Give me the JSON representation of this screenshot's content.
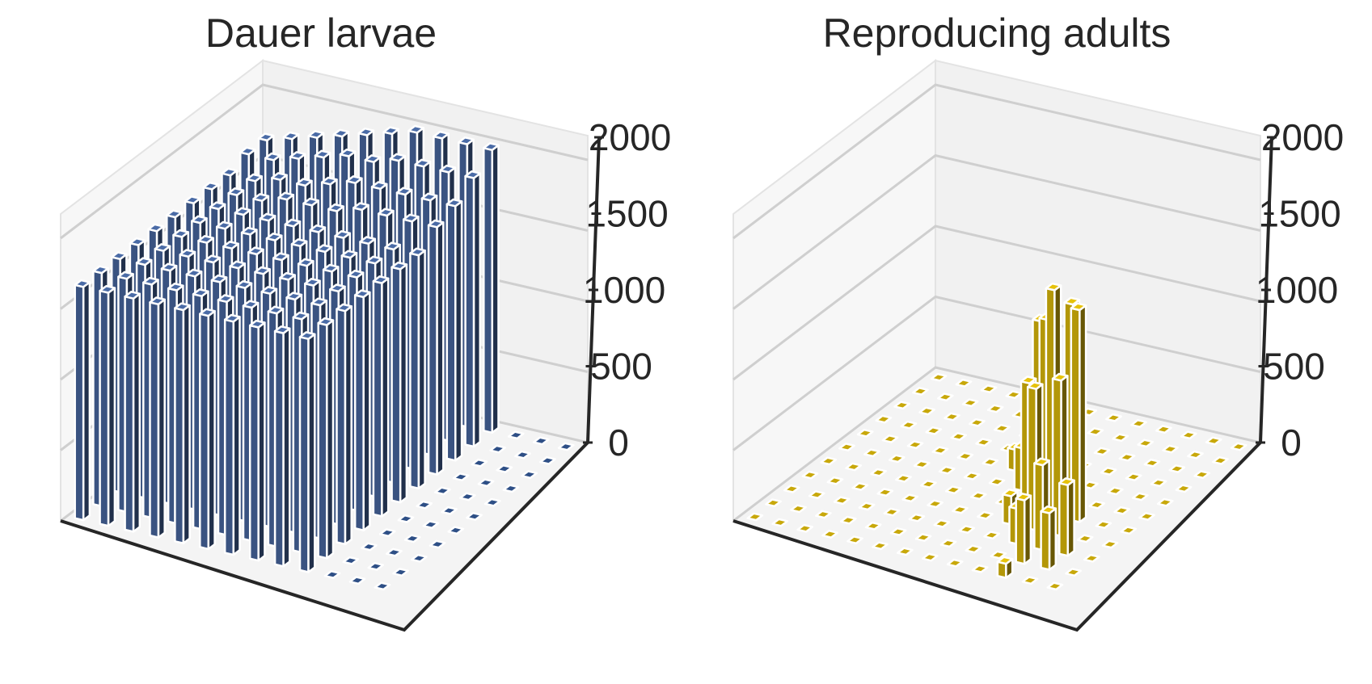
{
  "chart_data": [
    {
      "type": "bar3d",
      "title": "Dauer larvae",
      "zlim": [
        0,
        2000
      ],
      "zticks": [
        "0",
        "500",
        "1000",
        "1500",
        "2000"
      ],
      "grid": true,
      "bar_color": "#4a6ba6",
      "floor_color": "#2e4f86",
      "rows": [
        [
          1700,
          1750,
          1800,
          1850,
          1900,
          1950,
          2000,
          2000,
          2000,
          2000,
          0,
          0,
          0
        ],
        [
          1700,
          1700,
          1750,
          1800,
          1850,
          1850,
          1900,
          1900,
          1900,
          1900,
          0,
          0,
          0
        ],
        [
          1650,
          1650,
          1700,
          1700,
          1750,
          1800,
          1800,
          1800,
          1800,
          1800,
          0,
          0,
          0
        ],
        [
          1650,
          1650,
          1650,
          1700,
          1700,
          1700,
          1750,
          1750,
          1750,
          1750,
          0,
          0,
          0
        ],
        [
          1650,
          1650,
          1650,
          1650,
          1650,
          1650,
          1650,
          1650,
          1650,
          1650,
          0,
          0,
          0
        ],
        [
          1650,
          1650,
          1650,
          1650,
          1650,
          1650,
          1650,
          1650,
          1650,
          1650,
          0,
          0,
          0
        ],
        [
          1650,
          1650,
          1650,
          1650,
          1650,
          1650,
          1650,
          1650,
          1650,
          1650,
          0,
          0,
          0
        ],
        [
          1650,
          1650,
          1650,
          1650,
          1650,
          1650,
          1650,
          1650,
          1650,
          1650,
          0,
          0,
          0
        ],
        [
          1650,
          1650,
          1650,
          1650,
          1650,
          1650,
          1650,
          1650,
          1650,
          1650,
          0,
          0,
          0
        ],
        [
          1650,
          1650,
          1650,
          1650,
          1650,
          1650,
          1650,
          1650,
          1650,
          1650,
          0,
          0,
          0
        ],
        [
          1650,
          1650,
          1650,
          1650,
          1650,
          1650,
          1650,
          1650,
          1650,
          1650,
          0,
          0,
          0
        ]
      ]
    },
    {
      "type": "bar3d",
      "title": "Reproducing adults",
      "zlim": [
        0,
        2000
      ],
      "zticks": [
        "0",
        "500",
        "1000",
        "1500",
        "2000"
      ],
      "grid": true,
      "bar_color": "#e6c20a",
      "floor_color": "#c8a80a",
      "rows": [
        [
          0,
          0,
          0,
          0,
          0,
          0,
          0,
          0,
          0,
          0,
          0,
          0,
          0
        ],
        [
          0,
          0,
          0,
          0,
          0,
          0,
          0,
          0,
          0,
          0,
          0,
          0,
          0
        ],
        [
          0,
          0,
          0,
          0,
          0,
          0,
          0,
          0,
          0,
          0,
          0,
          0,
          0
        ],
        [
          0,
          0,
          0,
          0,
          0,
          0,
          0,
          0,
          0,
          0,
          0,
          0,
          0
        ],
        [
          0,
          0,
          0,
          0,
          0,
          0,
          150,
          1100,
          0,
          0,
          0,
          0,
          0
        ],
        [
          0,
          0,
          0,
          0,
          0,
          0,
          0,
          300,
          1250,
          1400,
          0,
          0,
          0
        ],
        [
          0,
          0,
          0,
          0,
          0,
          0,
          0,
          0,
          900,
          1600,
          1500,
          0,
          0
        ],
        [
          0,
          0,
          0,
          0,
          0,
          0,
          0,
          0,
          200,
          1000,
          1100,
          0,
          0
        ],
        [
          0,
          0,
          0,
          0,
          0,
          0,
          0,
          0,
          0,
          250,
          600,
          500,
          0
        ],
        [
          0,
          0,
          0,
          0,
          0,
          0,
          0,
          0,
          0,
          0,
          450,
          400,
          0
        ],
        [
          0,
          0,
          0,
          0,
          0,
          0,
          0,
          0,
          0,
          0,
          100,
          0,
          0
        ]
      ]
    }
  ]
}
